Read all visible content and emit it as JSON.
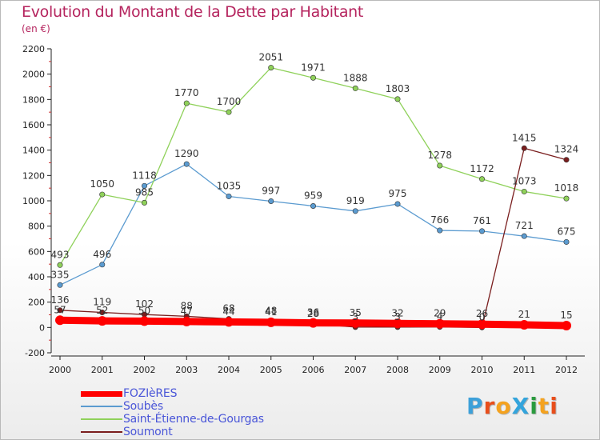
{
  "title": "Evolution du Montant de la Dette par Habitant",
  "subtitle": "(en €)",
  "logo": {
    "text": "ProXiti",
    "colors": [
      "#3da0d9",
      "#e84e1b",
      "#f4a21f",
      "#33a4dc",
      "#2b9b3f",
      "#f4a21f",
      "#e84e1b"
    ]
  },
  "chart_data": {
    "type": "line",
    "title": "Evolution du Montant de la Dette par Habitant",
    "subtitle": "(en €)",
    "xlabel": "",
    "ylabel": "",
    "categories": [
      "2000",
      "2001",
      "2002",
      "2003",
      "2004",
      "2005",
      "2006",
      "2007",
      "2008",
      "2009",
      "2010",
      "2011",
      "2012"
    ],
    "ylim": [
      -200,
      2200
    ],
    "yticks": [
      -200,
      0,
      200,
      400,
      600,
      800,
      1000,
      1200,
      1400,
      1600,
      1800,
      2000,
      2200
    ],
    "grid": false,
    "legend_position": "bottom-left",
    "series": [
      {
        "name": "FOZIèRES",
        "color": "#ff0000",
        "values": [
          57,
          52,
          50,
          47,
          44,
          41,
          36,
          35,
          32,
          29,
          26,
          21,
          15
        ]
      },
      {
        "name": "Soubès",
        "color": "#5b9bd0",
        "values": [
          335,
          496,
          1118,
          1290,
          1035,
          997,
          959,
          919,
          975,
          766,
          761,
          721,
          675
        ]
      },
      {
        "name": "Saint-Étienne-de-Gourgas",
        "color": "#8fd15a",
        "values": [
          493,
          1050,
          985,
          1770,
          1700,
          2051,
          1971,
          1888,
          1803,
          1278,
          1172,
          1073,
          1018
        ]
      },
      {
        "name": "Soumont",
        "color": "#7a1e1e",
        "values": [
          136,
          119,
          102,
          88,
          68,
          48,
          28,
          3,
          3,
          4,
          0,
          1415,
          1324
        ]
      }
    ]
  }
}
